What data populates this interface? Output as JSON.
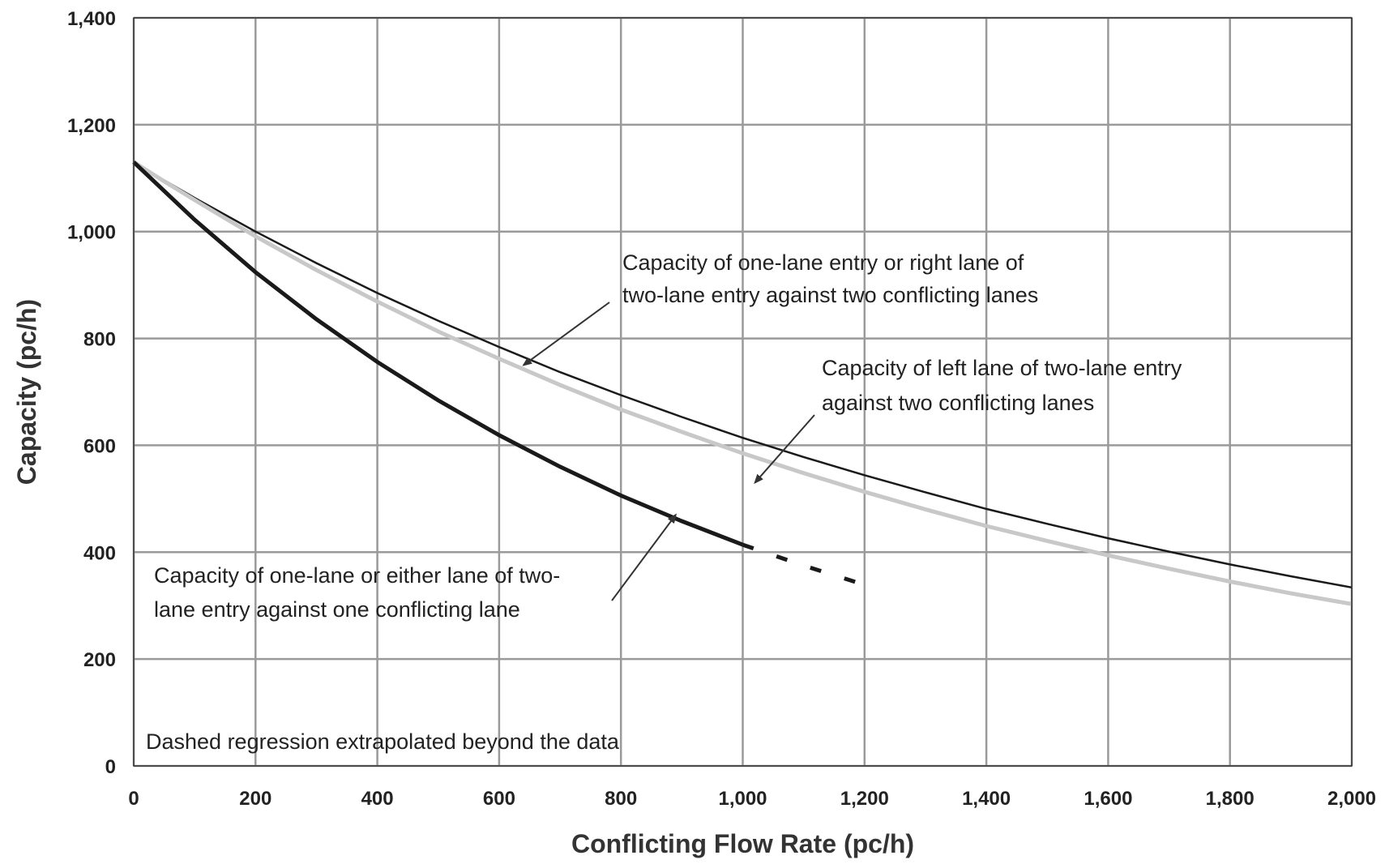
{
  "chart_data": {
    "type": "line",
    "title": "",
    "xlabel": "Conflicting Flow Rate (pc/h)",
    "ylabel": "Capacity (pc/h)",
    "xlim": [
      0,
      2000
    ],
    "ylim": [
      0,
      1400
    ],
    "x_ticks": [
      0,
      200,
      400,
      600,
      800,
      1000,
      1200,
      1400,
      1600,
      1800,
      2000
    ],
    "y_ticks": [
      0,
      200,
      400,
      600,
      800,
      1000,
      1200,
      1400
    ],
    "x_tick_labels": [
      "0",
      "200",
      "400",
      "600",
      "800",
      "1,000",
      "1,200",
      "1,400",
      "1,600",
      "1,800",
      "2,000"
    ],
    "y_tick_labels": [
      "0",
      "200",
      "400",
      "600",
      "800",
      "1,000",
      "1,200",
      "1,400"
    ],
    "grid": true,
    "series": [
      {
        "id": "one-lane-two-conflicting",
        "color": "#1a1a1a",
        "style": "thin",
        "x": [
          0,
          50,
          100,
          200,
          300,
          400,
          500,
          600,
          700,
          800,
          900,
          1000,
          1100,
          1200,
          1300,
          1400,
          1500,
          1600,
          1700,
          1800,
          1900,
          2000
        ],
        "y": [
          1130,
          1096,
          1063,
          1000,
          941,
          885,
          833,
          784,
          737,
          694,
          653,
          614,
          578,
          544,
          512,
          481,
          453,
          426,
          401,
          377,
          355,
          334
        ]
      },
      {
        "id": "left-lane-two-conflicting",
        "color": "#c8c8c8",
        "style": "thick",
        "x": [
          0,
          50,
          100,
          200,
          300,
          400,
          500,
          600,
          700,
          800,
          900,
          1000,
          1100,
          1200,
          1300,
          1400,
          1500,
          1600,
          1700,
          1800,
          1900,
          2000
        ],
        "y": [
          1130,
          1094,
          1059,
          991,
          928,
          869,
          813,
          762,
          713,
          667,
          625,
          585,
          548,
          513,
          480,
          449,
          421,
          394,
          369,
          345,
          323,
          303
        ]
      },
      {
        "id": "one-conflicting-lane",
        "color": "#1a1a1a",
        "style": "thick",
        "x": [
          0,
          100,
          200,
          300,
          400,
          500,
          600,
          700,
          800,
          900,
          1000,
          1100,
          1200
        ],
        "y": [
          1130,
          1022,
          924,
          836,
          756,
          684,
          619,
          560,
          506,
          458,
          414,
          375,
          339
        ],
        "solid_until_x": 1000
      }
    ],
    "annotations": [
      {
        "lines": [
          "Capacity of one-lane entry or right lane of",
          "two-lane entry against two conflicting lanes"
        ],
        "points_to": {
          "x": 640,
          "y": 750
        }
      },
      {
        "lines": [
          "Capacity of left lane of two-lane entry",
          "against two conflicting lanes"
        ],
        "points_to": {
          "x": 1020,
          "y": 530
        }
      },
      {
        "lines": [
          "Capacity of one-lane or either lane of two-",
          "lane entry against one conflicting lane"
        ],
        "points_to": {
          "x": 890,
          "y": 470
        }
      },
      {
        "lines": [
          "Dashed regression extrapolated beyond the data"
        ],
        "points_to": null
      }
    ]
  }
}
